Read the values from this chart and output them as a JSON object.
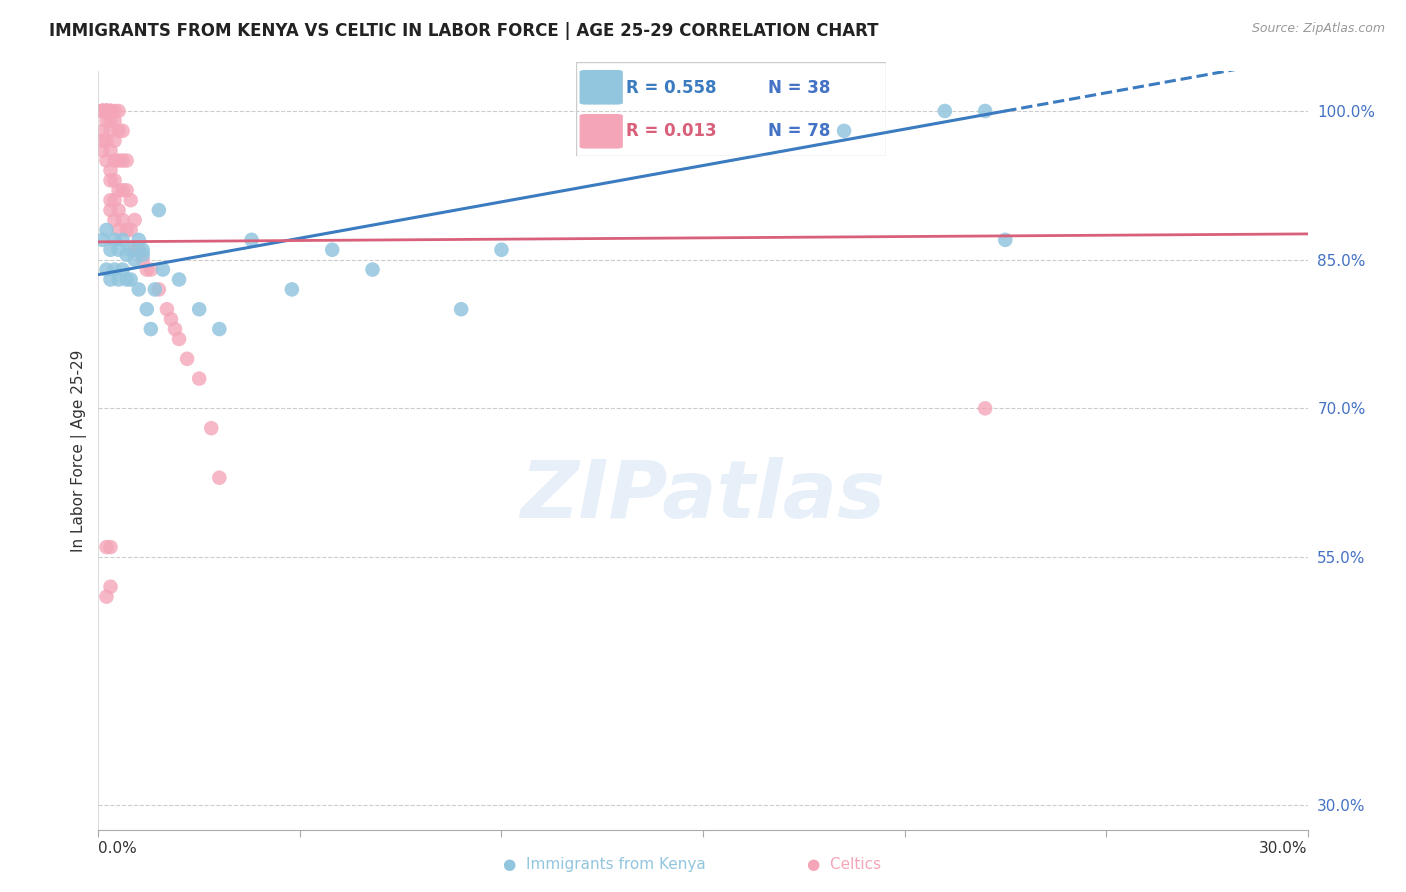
{
  "title": "IMMIGRANTS FROM KENYA VS CELTIC IN LABOR FORCE | AGE 25-29 CORRELATION CHART",
  "source": "Source: ZipAtlas.com",
  "ylabel": "In Labor Force | Age 25-29",
  "yticks": [
    30.0,
    55.0,
    70.0,
    85.0,
    100.0
  ],
  "xlim": [
    0.0,
    0.3
  ],
  "ylim": [
    0.275,
    1.04
  ],
  "legend_blue_r": "0.558",
  "legend_blue_n": "38",
  "legend_pink_r": "0.013",
  "legend_pink_n": "78",
  "blue_color": "#92c5de",
  "pink_color": "#f4a6b8",
  "blue_line_color": "#3b7bbf",
  "pink_line_color": "#d9607a",
  "right_axis_color": "#4472c4",
  "kenya_x": [
    0.001,
    0.002,
    0.002,
    0.003,
    0.003,
    0.004,
    0.004,
    0.005,
    0.005,
    0.006,
    0.006,
    0.007,
    0.007,
    0.008,
    0.008,
    0.009,
    0.01,
    0.01,
    0.011,
    0.011,
    0.012,
    0.013,
    0.014,
    0.015,
    0.016,
    0.02,
    0.025,
    0.03,
    0.038,
    0.048,
    0.058,
    0.068,
    0.09,
    0.1,
    0.185,
    0.21,
    0.22,
    0.225
  ],
  "kenya_y": [
    0.87,
    0.88,
    0.84,
    0.86,
    0.83,
    0.87,
    0.84,
    0.86,
    0.83,
    0.87,
    0.84,
    0.855,
    0.83,
    0.86,
    0.83,
    0.85,
    0.87,
    0.82,
    0.855,
    0.86,
    0.8,
    0.78,
    0.82,
    0.9,
    0.84,
    0.83,
    0.8,
    0.78,
    0.87,
    0.82,
    0.86,
    0.84,
    0.8,
    0.86,
    0.98,
    1.0,
    1.0,
    0.87
  ],
  "celtic_x": [
    0.001,
    0.001,
    0.001,
    0.001,
    0.001,
    0.001,
    0.001,
    0.001,
    0.001,
    0.001,
    0.001,
    0.002,
    0.002,
    0.002,
    0.002,
    0.002,
    0.002,
    0.002,
    0.002,
    0.002,
    0.002,
    0.002,
    0.002,
    0.002,
    0.002,
    0.003,
    0.003,
    0.003,
    0.003,
    0.003,
    0.003,
    0.003,
    0.003,
    0.003,
    0.003,
    0.003,
    0.004,
    0.004,
    0.004,
    0.004,
    0.004,
    0.004,
    0.004,
    0.005,
    0.005,
    0.005,
    0.005,
    0.005,
    0.005,
    0.006,
    0.006,
    0.006,
    0.006,
    0.007,
    0.007,
    0.007,
    0.008,
    0.008,
    0.009,
    0.009,
    0.01,
    0.011,
    0.012,
    0.013,
    0.015,
    0.017,
    0.018,
    0.019,
    0.02,
    0.022,
    0.025,
    0.028,
    0.03,
    0.002,
    0.002,
    0.003,
    0.003,
    0.22
  ],
  "celtic_y": [
    1.0,
    1.0,
    1.0,
    1.0,
    1.0,
    1.0,
    1.0,
    1.0,
    0.98,
    0.97,
    0.96,
    1.0,
    1.0,
    1.0,
    1.0,
    1.0,
    1.0,
    1.0,
    1.0,
    1.0,
    1.0,
    1.0,
    0.99,
    0.97,
    0.95,
    1.0,
    1.0,
    1.0,
    1.0,
    0.99,
    0.98,
    0.96,
    0.94,
    0.93,
    0.91,
    0.9,
    1.0,
    0.99,
    0.97,
    0.95,
    0.93,
    0.91,
    0.89,
    1.0,
    0.98,
    0.95,
    0.92,
    0.9,
    0.88,
    0.98,
    0.95,
    0.92,
    0.89,
    0.95,
    0.92,
    0.88,
    0.91,
    0.88,
    0.89,
    0.86,
    0.86,
    0.85,
    0.84,
    0.84,
    0.82,
    0.8,
    0.79,
    0.78,
    0.77,
    0.75,
    0.73,
    0.68,
    0.63,
    0.56,
    0.51,
    0.56,
    0.52,
    0.7
  ]
}
